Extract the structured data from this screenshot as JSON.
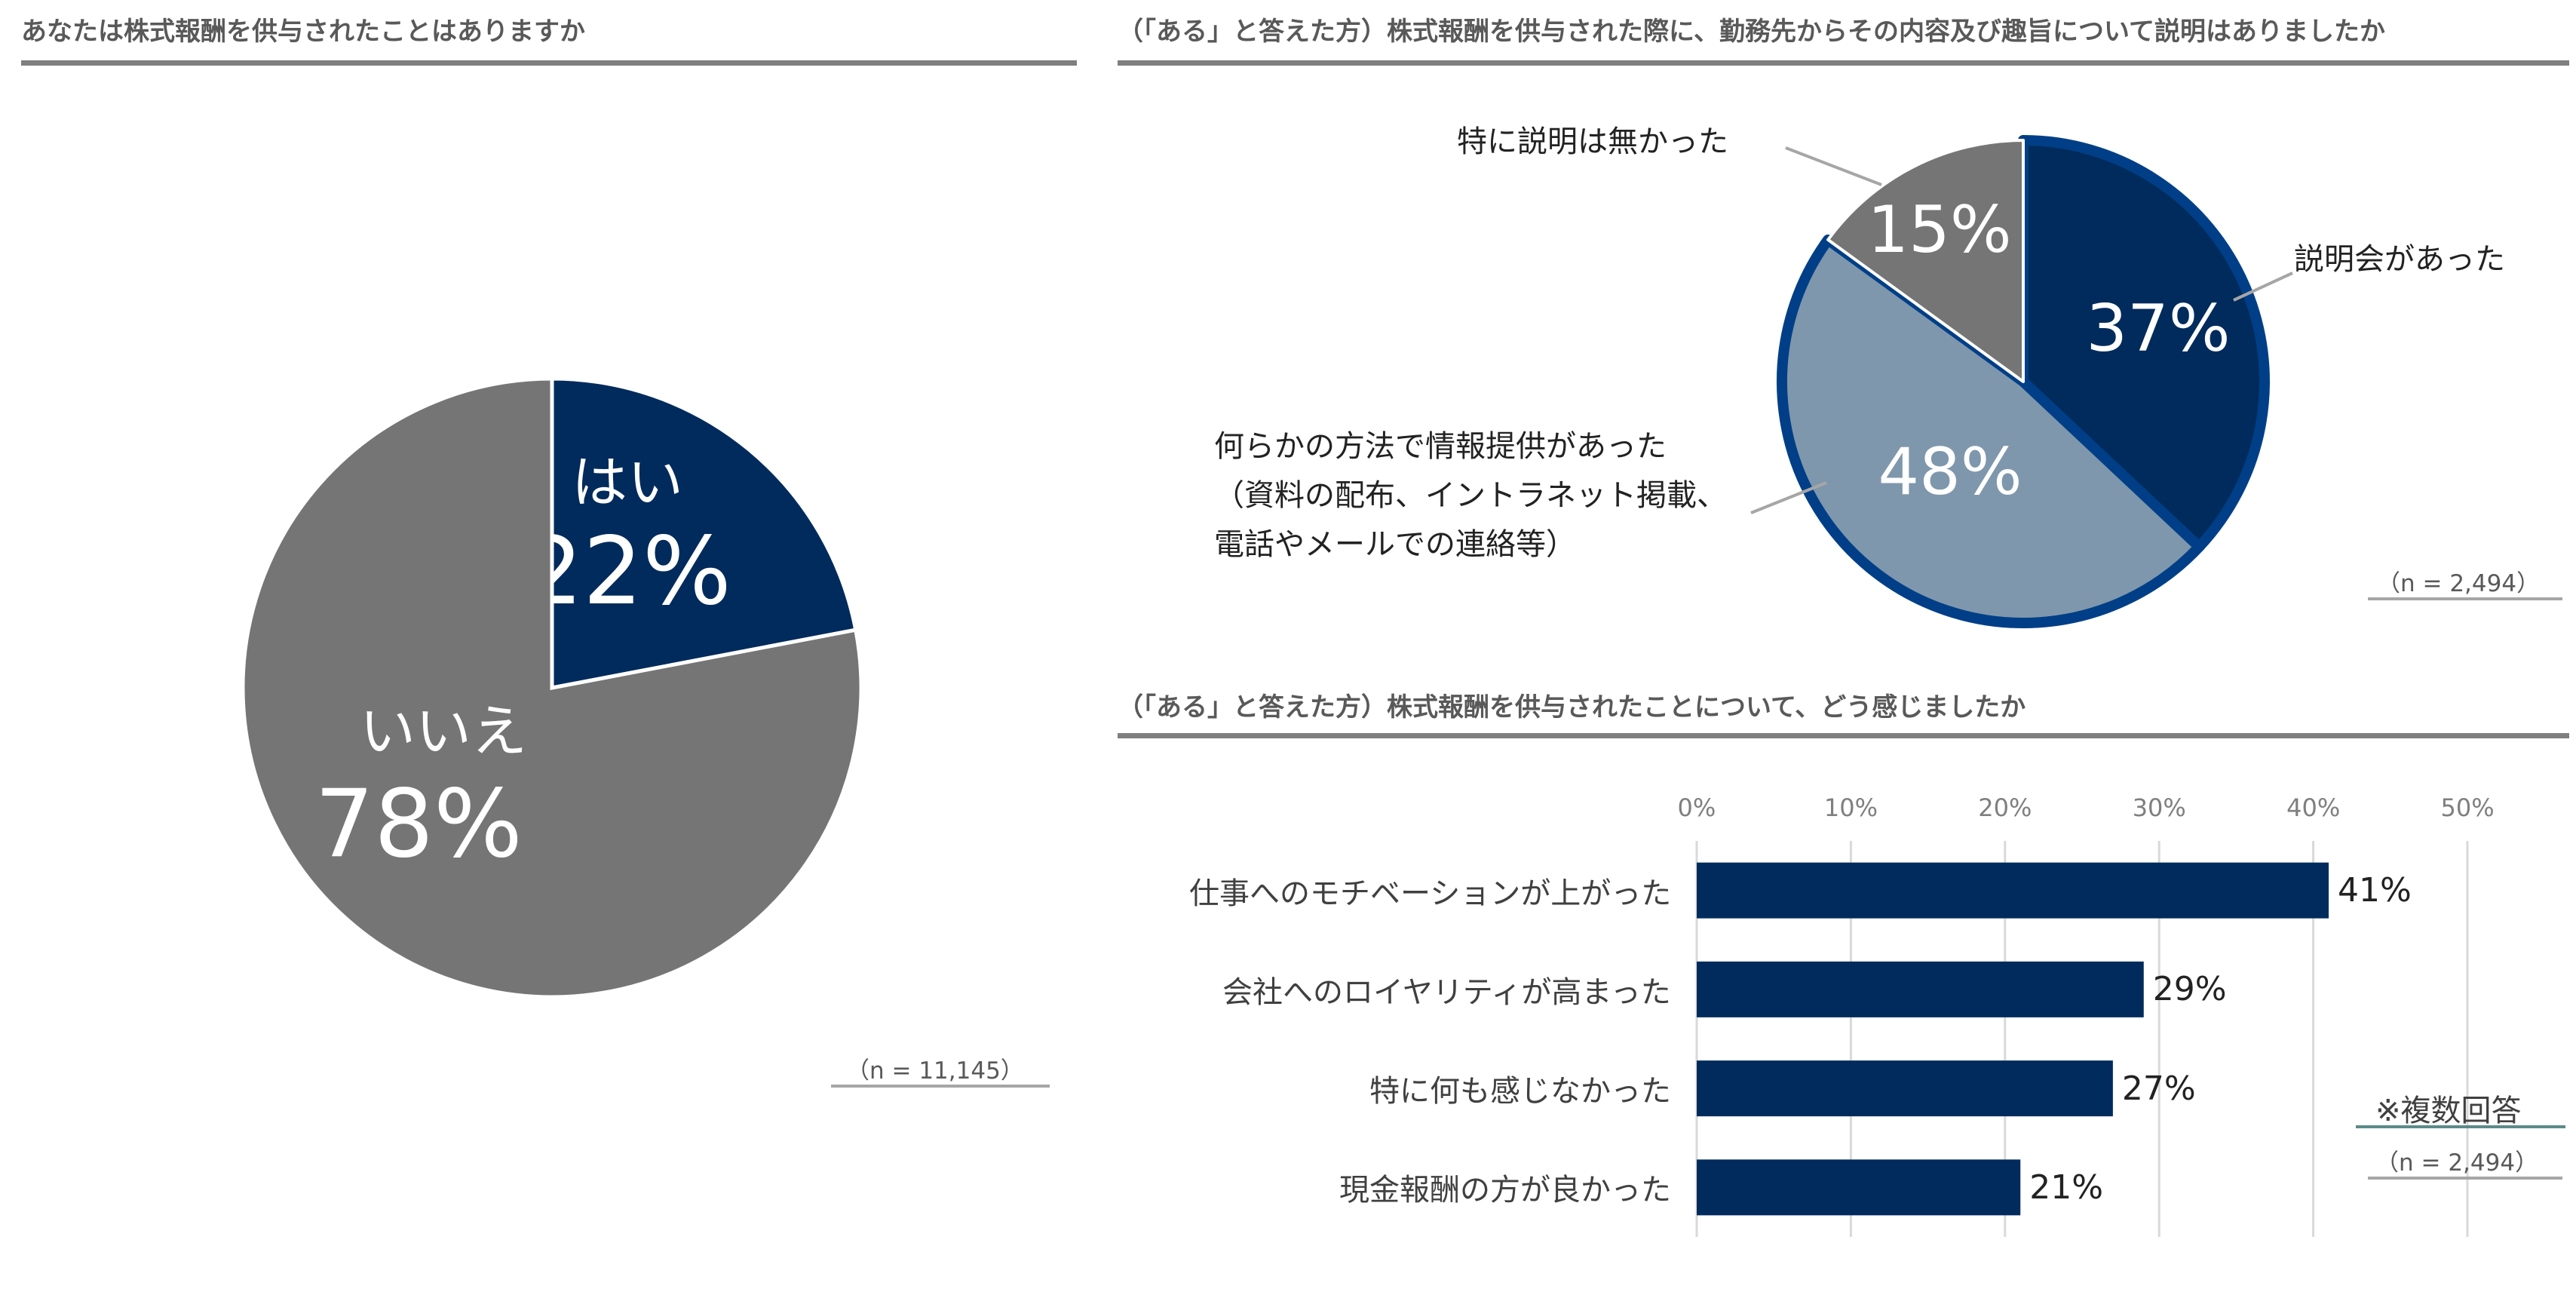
{
  "panel1": {
    "title": "あなたは株式報酬を供与されたことはありますか",
    "n": "（n = 11,145）"
  },
  "panel2": {
    "title": "（「ある」と答えた方）株式報酬を供与された際に、勤務先からその内容及び趣旨について説明はありましたか",
    "n": "（n = 2,494）",
    "annotations": {
      "none": "特に説明は無かった",
      "session": "説明会があった",
      "other_line1": "何らかの方法で情報提供があった",
      "other_line2": "（資料の配布、イントラネット掲載、",
      "other_line3": "電話やメールでの連絡等）"
    }
  },
  "panel3": {
    "title": "（「ある」と答えた方）株式報酬を供与されたことについて、どう感じましたか",
    "n": "（n = 2,494）",
    "note": "※複数回答"
  },
  "colors": {
    "navy": "#002b5c",
    "gray": "#757575",
    "light_blue": "#7f97ac",
    "border_blue": "#003f87"
  },
  "chart_data": [
    {
      "type": "pie",
      "title": "あなたは株式報酬を供与されたことはありますか",
      "slices": [
        {
          "label": "はい",
          "value": 22,
          "display": "22%",
          "color": "#002b5c"
        },
        {
          "label": "いいえ",
          "value": 78,
          "display": "78%",
          "color": "#757575"
        }
      ]
    },
    {
      "type": "pie",
      "title": "（「ある」と答えた方）株式報酬を供与された際に、勤務先からその内容及び趣旨について説明はありましたか",
      "slices": [
        {
          "label": "説明会があった",
          "value": 37,
          "display": "37%",
          "color": "#002b5c"
        },
        {
          "label": "何らかの方法で情報提供があった（資料の配布、イントラネット掲載、電話やメールでの連絡等）",
          "value": 48,
          "display": "48%",
          "color": "#7f97ac"
        },
        {
          "label": "特に説明は無かった",
          "value": 15,
          "display": "15%",
          "color": "#757575"
        }
      ]
    },
    {
      "type": "bar",
      "orientation": "horizontal",
      "title": "（「ある」と答えた方）株式報酬を供与されたことについて、どう感じましたか",
      "categories": [
        "仕事へのモチベーションが上がった",
        "会社へのロイヤリティが高まった",
        "特に何も感じなかった",
        "現金報酬の方が良かった"
      ],
      "values": [
        41,
        29,
        27,
        21
      ],
      "value_labels": [
        "41%",
        "29%",
        "27%",
        "21%"
      ],
      "xlim": [
        0,
        50
      ],
      "ticks": [
        "0%",
        "10%",
        "20%",
        "30%",
        "40%",
        "50%"
      ],
      "grid": true
    }
  ]
}
